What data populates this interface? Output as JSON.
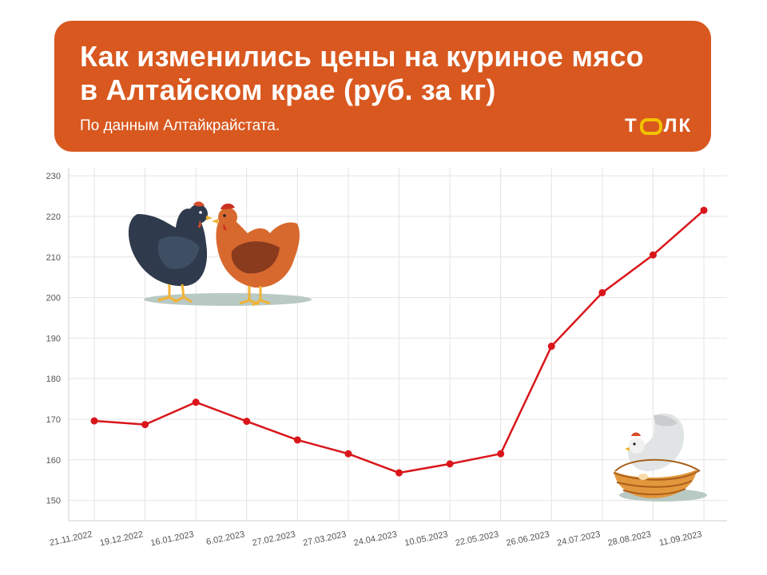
{
  "banner": {
    "title_line1": "Как изменились цены на куриное мясо",
    "title_line2": "в Алтайском крае (руб. за кг)",
    "subtitle": "По данным Алтайкрайстата.",
    "logo_left": "Т",
    "logo_right": "ЛК",
    "color": "#d8581f",
    "logo_accent": "#f2c200"
  },
  "chart_data": {
    "type": "line",
    "title": "Как изменились цены на куриное мясо в Алтайском крае (руб. за кг)",
    "xlabel": "",
    "ylabel": "",
    "categories": [
      "21.11.2022",
      "19.12.2022",
      "16.01.2023",
      "6.02.2023",
      "27.02.2023",
      "27.03.2023",
      "24.04.2023",
      "10.05.2023",
      "22.05.2023",
      "26.06.2023",
      "24.07.2023",
      "28.08.2023",
      "11.09.2023"
    ],
    "series": [
      {
        "values": [
          169.6,
          168.7,
          174.2,
          169.5,
          164.9,
          161.5,
          156.8,
          159.0,
          161.5,
          188.0,
          201.2,
          210.5,
          221.5
        ],
        "color": "#d9161b"
      }
    ],
    "ylim": [
      145,
      232
    ],
    "yticks": [
      150,
      160,
      170,
      180,
      190,
      200,
      210,
      220,
      230
    ],
    "grid": true,
    "legend": "none"
  },
  "illustrations": [
    "two-hens-illustration",
    "hen-in-nest-illustration"
  ]
}
